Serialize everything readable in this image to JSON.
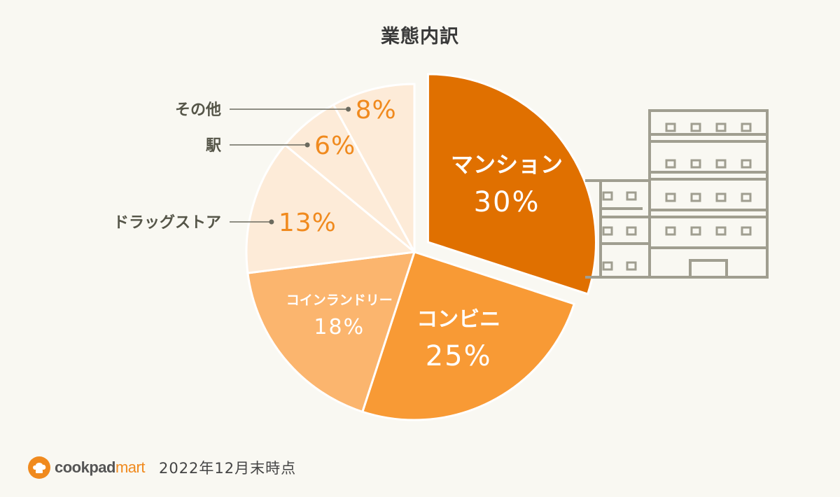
{
  "chart_data": {
    "type": "pie",
    "title": "業態内訳",
    "slices": [
      {
        "label": "マンション",
        "value": 30,
        "value_label": "30%",
        "color": "#e07000",
        "exploded": true,
        "label_inside": true
      },
      {
        "label": "コンビニ",
        "value": 25,
        "value_label": "25%",
        "color": "#f89a35",
        "label_inside": true
      },
      {
        "label": "コインランドリー",
        "value": 18,
        "value_label": "18%",
        "color": "#fbb56e",
        "label_inside": true
      },
      {
        "label": "ドラッグストア",
        "value": 13,
        "value_label": "13%",
        "color": "#fdebd8",
        "label_inside": false
      },
      {
        "label": "駅",
        "value": 6,
        "value_label": "6%",
        "color": "#fdebd8",
        "label_inside": false
      },
      {
        "label": "その他",
        "value": 8,
        "value_label": "8%",
        "color": "#fdebd8",
        "label_inside": false
      }
    ],
    "outside_value_color": "#f08a1e",
    "outside_label_color": "#555548",
    "illustration": "building-icon"
  },
  "footer": {
    "brand_main": "cookpad",
    "brand_sub": "mart",
    "date": "2022年12月末時点"
  }
}
